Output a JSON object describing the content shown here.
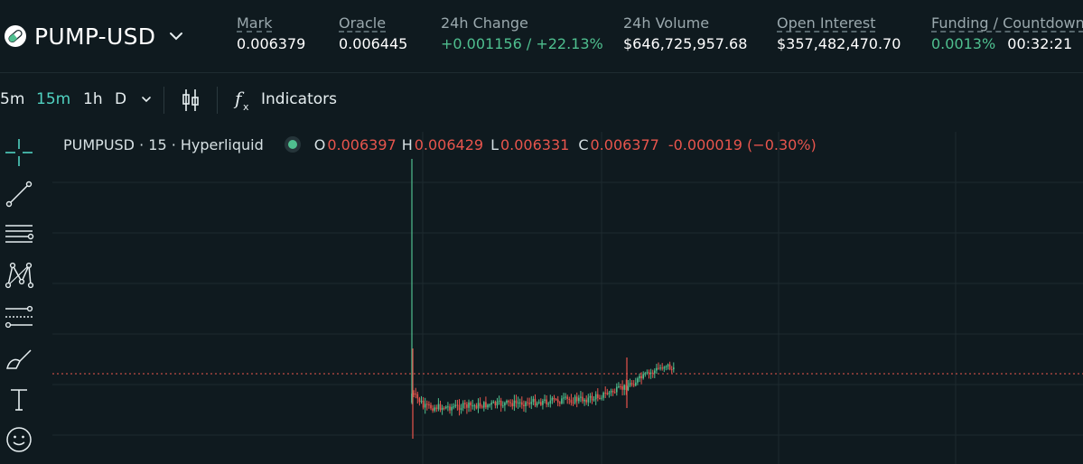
{
  "market": {
    "symbol": "PUMP-USD"
  },
  "stats": [
    {
      "label": "Mark",
      "value": "0.006379",
      "underlined": true,
      "positive": false
    },
    {
      "label": "Oracle",
      "value": "0.006445",
      "underlined": true,
      "positive": false
    },
    {
      "label": "24h Change",
      "value": "+0.001156 / +22.13%",
      "underlined": false,
      "positive": true
    },
    {
      "label": "24h Volume",
      "value": "$646,725,957.68",
      "underlined": false,
      "positive": false
    },
    {
      "label": "Open Interest",
      "value": "$357,482,470.70",
      "underlined": true,
      "positive": false
    },
    {
      "label": "Funding / Countdown",
      "value_rate": "0.0013%",
      "value_time": "00:32:21",
      "underlined": true
    }
  ],
  "toolbar": {
    "intervals": [
      "5m",
      "15m",
      "1h",
      "D"
    ],
    "active_interval": "15m",
    "indicators_label": "Indicators"
  },
  "legend": {
    "title": "PUMPUSD · 15 · Hyperliquid",
    "o_label": "O",
    "o": "0.006397",
    "h_label": "H",
    "h": "0.006429",
    "l_label": "L",
    "l": "0.006331",
    "c_label": "C",
    "c": "0.006377",
    "change": "-0.000019 (−0.30%)"
  },
  "colors": {
    "background": "#0f1a1f",
    "up": "#4fbf8f",
    "down": "#e8554d",
    "accent": "#50d2c1",
    "grid": "#1d2a2f"
  },
  "drawing_tools": [
    "crosshair-icon",
    "trend-line-icon",
    "horizontal-lines-icon",
    "pattern-icon",
    "fib-icon",
    "brush-icon",
    "text-icon",
    "emoji-icon"
  ],
  "chart_data": {
    "type": "candlestick",
    "visible_features": "sharp spike at listing then sideways drift, rally toward the end",
    "last_price_line": "0.006377"
  }
}
